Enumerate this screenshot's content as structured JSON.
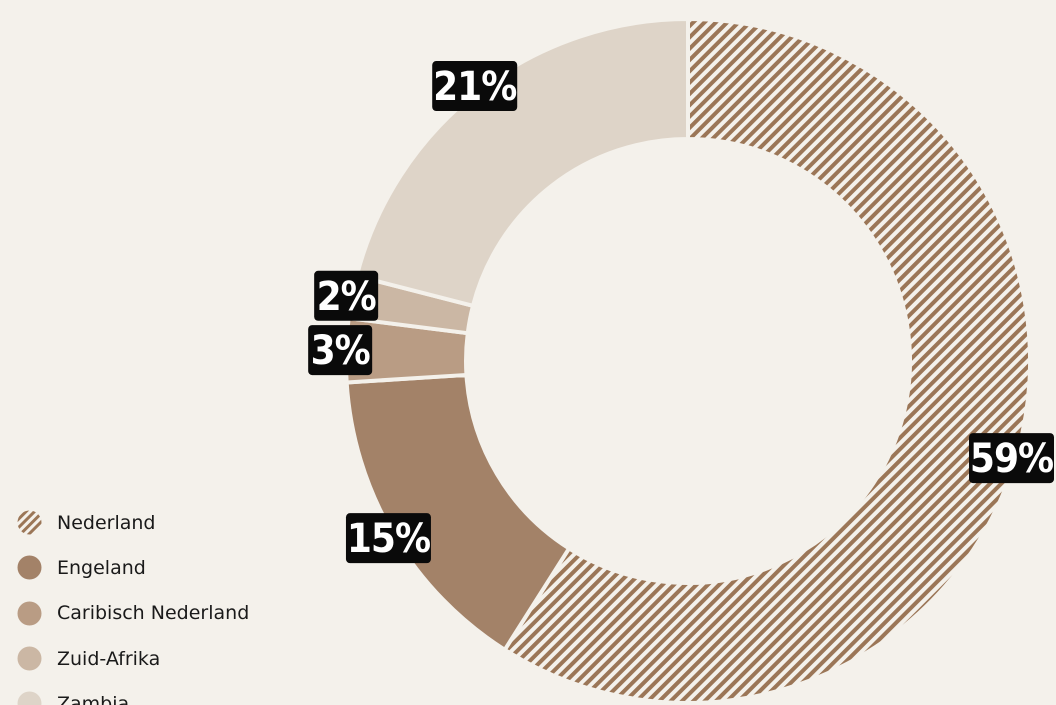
{
  "chart_data": {
    "type": "pie",
    "title": "",
    "categories": [
      "Nederland",
      "Engeland",
      "Caribisch Nederland",
      "Zuid-Afrika",
      "Zambia"
    ],
    "values": [
      59,
      15,
      3,
      2,
      21
    ],
    "labels": [
      "59%",
      "15%",
      "3%",
      "2%",
      "21%"
    ],
    "colors": [
      "#9b7657",
      "#a38268",
      "#b99c84",
      "#cbb7a4",
      "#ded4c8"
    ],
    "patterns": [
      "diagonal-stripes",
      "solid",
      "solid",
      "solid",
      "solid"
    ],
    "donut": true,
    "start_angle": "12 o'clock",
    "direction": "clockwise",
    "legend_position": "bottom-left"
  },
  "colors": {
    "background": "#f4f1eb",
    "label_background": "#0a0a0a",
    "label_text": "#ffffff",
    "legend_text": "#1a1a1a"
  },
  "legend": {
    "items": [
      {
        "label": "Nederland",
        "icon": "striped-circle-icon"
      },
      {
        "label": "Engeland",
        "icon": "circle-icon"
      },
      {
        "label": "Caribisch Nederland",
        "icon": "circle-icon"
      },
      {
        "label": "Zuid-Afrika",
        "icon": "circle-icon"
      },
      {
        "label": "Zambia",
        "icon": "circle-icon"
      }
    ]
  }
}
